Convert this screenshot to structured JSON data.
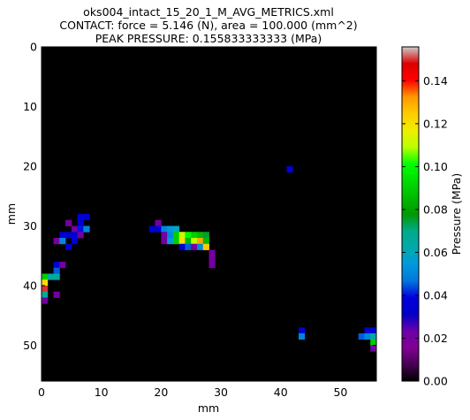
{
  "chart_data": {
    "type": "heatmap",
    "title_lines": [
      "oks004_intact_15_20_1_M_AVG_METRICS.xml",
      "CONTACT: force = 5.146 (N), area = 100.000 (mm^2)",
      "PEAK PRESSURE: 0.155833333333 (MPa)"
    ],
    "xlabel": "mm",
    "ylabel": "mm",
    "xlim": [
      0,
      56
    ],
    "ylim": [
      56,
      0
    ],
    "x_ticks": [
      0,
      10,
      20,
      30,
      40,
      50
    ],
    "y_ticks": [
      0,
      10,
      20,
      30,
      40,
      50
    ],
    "background_color": "#000000",
    "colorbar": {
      "label": "Pressure (MPa)",
      "range": [
        0.0,
        0.155833333333
      ],
      "ticks": [
        "0.00",
        "0.02",
        "0.04",
        "0.06",
        "0.08",
        "0.10",
        "0.12",
        "0.14"
      ],
      "tick_values": [
        0.0,
        0.02,
        0.04,
        0.06,
        0.08,
        0.1,
        0.12,
        0.14
      ],
      "colormap": "nipy_spectral"
    },
    "cells": [
      [
        41,
        20,
        0.035
      ],
      [
        6,
        28,
        0.035
      ],
      [
        7,
        28,
        0.035
      ],
      [
        4,
        29,
        0.02
      ],
      [
        6,
        29,
        0.035
      ],
      [
        5,
        30,
        0.02
      ],
      [
        6,
        30,
        0.04
      ],
      [
        7,
        30,
        0.05
      ],
      [
        3,
        31,
        0.035
      ],
      [
        4,
        31,
        0.035
      ],
      [
        5,
        31,
        0.035
      ],
      [
        6,
        31,
        0.02
      ],
      [
        2,
        32,
        0.02
      ],
      [
        3,
        32,
        0.05
      ],
      [
        5,
        32,
        0.035
      ],
      [
        4,
        33,
        0.035
      ],
      [
        19,
        29,
        0.02
      ],
      [
        18,
        30,
        0.035
      ],
      [
        19,
        30,
        0.035
      ],
      [
        20,
        30,
        0.05
      ],
      [
        21,
        30,
        0.055
      ],
      [
        22,
        30,
        0.06
      ],
      [
        20,
        31,
        0.02
      ],
      [
        21,
        31,
        0.05
      ],
      [
        22,
        31,
        0.09
      ],
      [
        23,
        31,
        0.11
      ],
      [
        24,
        31,
        0.1
      ],
      [
        25,
        31,
        0.09
      ],
      [
        26,
        31,
        0.085
      ],
      [
        27,
        31,
        0.075
      ],
      [
        20,
        32,
        0.02
      ],
      [
        21,
        32,
        0.055
      ],
      [
        22,
        32,
        0.09
      ],
      [
        23,
        32,
        0.12
      ],
      [
        24,
        32,
        0.085
      ],
      [
        25,
        32,
        0.11
      ],
      [
        26,
        32,
        0.13
      ],
      [
        27,
        32,
        0.085
      ],
      [
        23,
        33,
        0.035
      ],
      [
        24,
        33,
        0.045
      ],
      [
        25,
        33,
        0.02
      ],
      [
        26,
        33,
        0.05
      ],
      [
        27,
        33,
        0.125
      ],
      [
        28,
        34,
        0.02
      ],
      [
        28,
        35,
        0.02
      ],
      [
        2,
        36,
        0.035
      ],
      [
        3,
        36,
        0.02
      ],
      [
        28,
        36,
        0.02
      ],
      [
        2,
        37,
        0.045
      ],
      [
        0,
        38,
        0.09
      ],
      [
        1,
        38,
        0.065
      ],
      [
        2,
        38,
        0.065
      ],
      [
        0,
        39,
        0.12
      ],
      [
        0,
        40,
        0.15
      ],
      [
        0,
        41,
        0.065
      ],
      [
        2,
        41,
        0.02
      ],
      [
        0,
        42,
        0.02
      ],
      [
        43,
        47,
        0.035
      ],
      [
        43,
        48,
        0.05
      ],
      [
        54,
        47,
        0.035
      ],
      [
        55,
        47,
        0.035
      ],
      [
        53,
        48,
        0.045
      ],
      [
        54,
        48,
        0.05
      ],
      [
        55,
        48,
        0.065
      ],
      [
        55,
        49,
        0.09
      ],
      [
        55,
        50,
        0.02
      ]
    ]
  }
}
